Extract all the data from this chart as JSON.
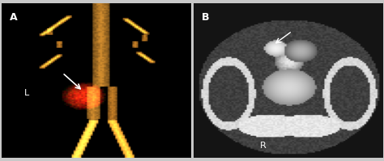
{
  "fig_width": 4.74,
  "fig_height": 1.99,
  "dpi": 100,
  "border_color": "#c8c8c8",
  "background_color": "#000000",
  "panel_A_label": "A",
  "panel_B_label": "B",
  "panel_A_sublabel": "L",
  "panel_B_sublabel": "R",
  "label_color": "#ffffff",
  "label_fontsize": 9,
  "sublabel_fontsize": 8
}
